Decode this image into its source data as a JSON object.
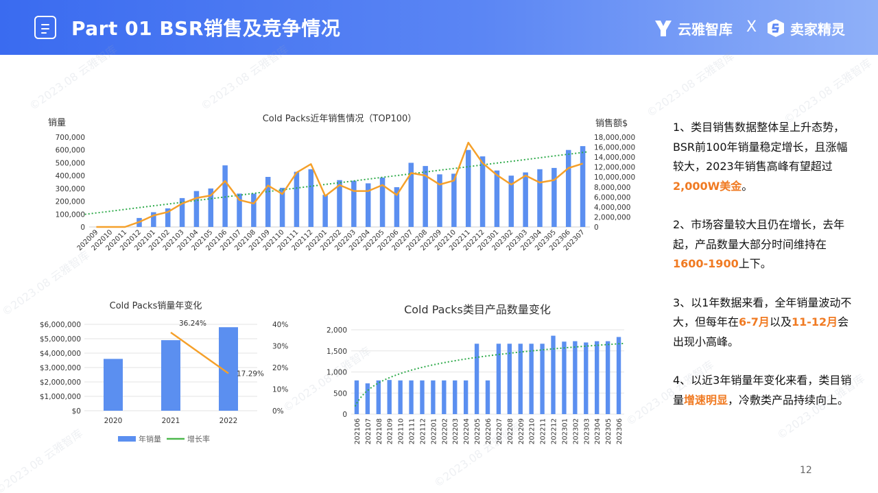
{
  "header": {
    "title": "Part 01  BSR销售及竞争情况",
    "brand_left": "云雅智库",
    "brand_separator": "X",
    "brand_right": "卖家精灵"
  },
  "watermark": "©2023.08  云雅智库",
  "chart_data": [
    {
      "type": "bar",
      "title": "Cold Packs近年销售情况（TOP100）",
      "ylabel": "销量",
      "y2label": "销售额$",
      "ylim": [
        0,
        700000
      ],
      "y2lim": [
        0,
        18000000
      ],
      "yticks": [
        "0",
        "100,000",
        "200,000",
        "300,000",
        "400,000",
        "500,000",
        "600,000",
        "700,000"
      ],
      "y2ticks": [
        "0",
        "2,000,000",
        "4,000,000",
        "6,000,000",
        "8,000,000",
        "10,000,000",
        "12,000,000",
        "14,000,000",
        "16,000,000",
        "18,000,000"
      ],
      "categories": [
        "202009",
        "202010",
        "202011",
        "202012",
        "202101",
        "202102",
        "202103",
        "202104",
        "202105",
        "202106",
        "202107",
        "202108",
        "202109",
        "202110",
        "202111",
        "202112",
        "202201",
        "202202",
        "202203",
        "202204",
        "202205",
        "202206",
        "202207",
        "202208",
        "202209",
        "202210",
        "202211",
        "202212",
        "202301",
        "202302",
        "202303",
        "202304",
        "202305",
        "202306",
        "202307"
      ],
      "series": [
        {
          "kind": "bar",
          "color": "#5b8ff0",
          "values": [
            0,
            0,
            0,
            70000,
            115000,
            145000,
            225000,
            280000,
            300000,
            480000,
            260000,
            260000,
            390000,
            305000,
            430000,
            450000,
            250000,
            365000,
            360000,
            340000,
            385000,
            310000,
            500000,
            475000,
            410000,
            415000,
            600000,
            550000,
            440000,
            400000,
            425000,
            450000,
            460000,
            600000,
            630000
          ]
        },
        {
          "kind": "line",
          "axis": "right",
          "color": "#f5a02a",
          "values": [
            0,
            0,
            0,
            1000000,
            2300000,
            3000000,
            4700000,
            5800000,
            6300000,
            9200000,
            5400000,
            4700000,
            8300000,
            6600000,
            10900000,
            12600000,
            6200000,
            8400000,
            7200000,
            7200000,
            8400000,
            6400000,
            10800000,
            10300000,
            8500000,
            9300000,
            16900000,
            12800000,
            10400000,
            8500000,
            10300000,
            8900000,
            9400000,
            11800000,
            12700000
          ]
        }
      ],
      "trendline": {
        "color": "#2eaa4a",
        "style": "dotted"
      }
    },
    {
      "type": "bar",
      "title": "Cold Packs销量年变化",
      "categories": [
        "2020",
        "2021",
        "2022"
      ],
      "ylim": [
        0,
        6000000
      ],
      "yticks": [
        "$0",
        "$1,000,000",
        "$2,000,000",
        "$3,000,000",
        "$4,000,000",
        "$5,000,000",
        "$6,000,000"
      ],
      "y2lim": [
        0,
        40
      ],
      "y2ticks": [
        "0%",
        "10%",
        "20%",
        "30%",
        "40%"
      ],
      "series": [
        {
          "name": "年销量",
          "kind": "bar",
          "color": "#5b8ff0",
          "values": [
            3600000,
            4900000,
            5800000
          ]
        },
        {
          "name": "增长率",
          "kind": "line",
          "axis": "right",
          "color": "#f5a02a",
          "legend_color": "#4cb84c",
          "values": [
            null,
            36.24,
            17.29
          ],
          "labels": [
            "",
            "36.24%",
            "17.29%"
          ]
        }
      ],
      "legend": "bottom"
    },
    {
      "type": "bar",
      "title": "Cold Packs类目产品数量变化",
      "ylim": [
        0,
        2000
      ],
      "yticks": [
        "0",
        "500",
        "1,000",
        "1,500",
        "2,000"
      ],
      "categories": [
        "202106",
        "202107",
        "202108",
        "202109",
        "202110",
        "202111",
        "202112",
        "202201",
        "202202",
        "202203",
        "202204",
        "202205",
        "202206",
        "202207",
        "202208",
        "202209",
        "202210",
        "202211",
        "202212",
        "202301",
        "202302",
        "202303",
        "202304",
        "202305",
        "202306"
      ],
      "series": [
        {
          "kind": "bar",
          "color": "#5b8ff0",
          "values": [
            800,
            730,
            800,
            810,
            800,
            800,
            800,
            800,
            800,
            800,
            800,
            1670,
            800,
            1670,
            1670,
            1670,
            1670,
            1670,
            1860,
            1720,
            1730,
            1700,
            1730,
            1730,
            1830
          ]
        }
      ],
      "trendline": {
        "color": "#2eaa4a",
        "style": "dotted",
        "shape": "log"
      }
    }
  ],
  "notes": [
    [
      {
        "t": "1、类目销售数据整体呈上升态势，BSR前100年销量稳定增长，且涨幅较大，2023年销售高峰有望超过"
      },
      {
        "t": "2,000W美金",
        "h": true
      },
      {
        "t": "。"
      }
    ],
    [
      {
        "t": "2、市场容量较大且仍在增长，去年起，产品数量大部分时间维持在"
      },
      {
        "t": "1600-1900",
        "h": true
      },
      {
        "t": "上下。"
      }
    ],
    [
      {
        "t": "3、以1年数据来看，全年销量波动不大，但每年在"
      },
      {
        "t": "6-7月",
        "h": true
      },
      {
        "t": "以及"
      },
      {
        "t": "11-12月",
        "h": true
      },
      {
        "t": "会出现小高峰。"
      }
    ],
    [
      {
        "t": "4、以近3年销量年变化来看，类目销量"
      },
      {
        "t": "增速明显",
        "h": true
      },
      {
        "t": "，冷敷类产品持续向上。"
      }
    ]
  ],
  "page_number": "12"
}
